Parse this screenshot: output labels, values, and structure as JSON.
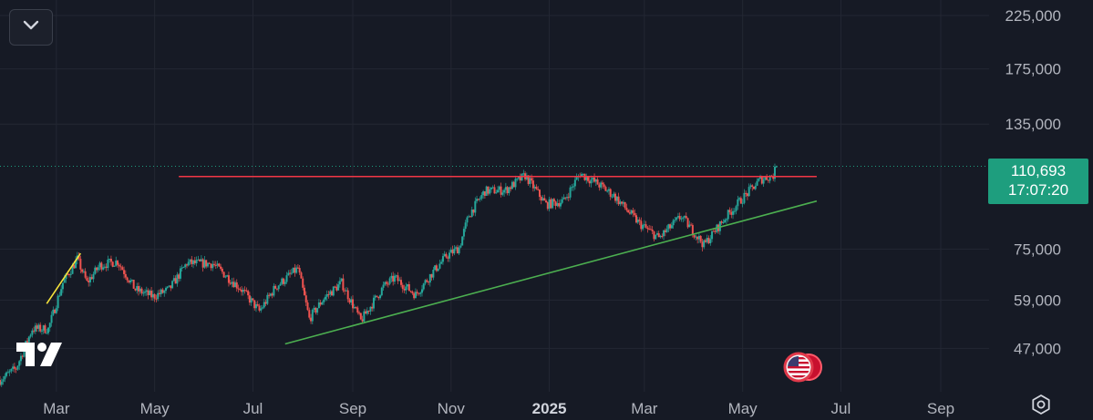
{
  "chart_data": {
    "type": "candlestick",
    "y_scale": "log",
    "ylim": [
      40000,
      240000
    ],
    "x_range": [
      "2024-01-26",
      "2025-10-01"
    ],
    "y_ticks": [
      225000,
      175000,
      135000,
      75000,
      59000,
      47000
    ],
    "y_tick_labels": [
      "225,000",
      "175,000",
      "135,000",
      "75,000",
      "59,000",
      "47,000"
    ],
    "x_ticks": [
      {
        "date": "2024-03-01",
        "label": "Mar",
        "bold": false
      },
      {
        "date": "2024-05-01",
        "label": "May",
        "bold": false
      },
      {
        "date": "2024-07-01",
        "label": "Jul",
        "bold": false
      },
      {
        "date": "2024-09-01",
        "label": "Sep",
        "bold": false
      },
      {
        "date": "2024-11-01",
        "label": "Nov",
        "bold": false
      },
      {
        "date": "2025-01-01",
        "label": "2025",
        "bold": true
      },
      {
        "date": "2025-03-01",
        "label": "Mar",
        "bold": false
      },
      {
        "date": "2025-05-01",
        "label": "May",
        "bold": false
      },
      {
        "date": "2025-07-01",
        "label": "Jul",
        "bold": false
      },
      {
        "date": "2025-09-01",
        "label": "Sep",
        "bold": false
      }
    ],
    "price_path": [
      [
        "2024-01-26",
        40500
      ],
      [
        "2024-02-05",
        42800
      ],
      [
        "2024-02-15",
        51500
      ],
      [
        "2024-02-25",
        51500
      ],
      [
        "2024-03-05",
        64000
      ],
      [
        "2024-03-14",
        71500
      ],
      [
        "2024-03-20",
        64000
      ],
      [
        "2024-03-28",
        69500
      ],
      [
        "2024-04-08",
        70800
      ],
      [
        "2024-04-19",
        62000
      ],
      [
        "2024-04-30",
        60000
      ],
      [
        "2024-05-10",
        62000
      ],
      [
        "2024-05-21",
        70200
      ],
      [
        "2024-06-06",
        70000
      ],
      [
        "2024-06-24",
        62000
      ],
      [
        "2024-07-05",
        56000
      ],
      [
        "2024-07-15",
        62700
      ],
      [
        "2024-07-29",
        68500
      ],
      [
        "2024-08-05",
        54000
      ],
      [
        "2024-08-14",
        59500
      ],
      [
        "2024-08-25",
        64000
      ],
      [
        "2024-09-06",
        53500
      ],
      [
        "2024-09-20",
        62800
      ],
      [
        "2024-09-27",
        65500
      ],
      [
        "2024-10-10",
        60500
      ],
      [
        "2024-10-21",
        67500
      ],
      [
        "2024-10-29",
        72500
      ],
      [
        "2024-11-06",
        75500
      ],
      [
        "2024-11-12",
        88000
      ],
      [
        "2024-11-22",
        98500
      ],
      [
        "2024-12-05",
        99000
      ],
      [
        "2024-12-17",
        106000
      ],
      [
        "2024-12-30",
        92500
      ],
      [
        "2025-01-10",
        94000
      ],
      [
        "2025-01-20",
        107000
      ],
      [
        "2025-01-31",
        102000
      ],
      [
        "2025-02-10",
        96500
      ],
      [
        "2025-02-26",
        84500
      ],
      [
        "2025-03-10",
        79000
      ],
      [
        "2025-03-24",
        87500
      ],
      [
        "2025-04-07",
        76500
      ],
      [
        "2025-04-21",
        87500
      ],
      [
        "2025-04-30",
        94500
      ],
      [
        "2025-05-12",
        104000
      ],
      [
        "2025-05-20",
        106000
      ],
      [
        "2025-05-22",
        110693
      ]
    ],
    "last_price": 110693,
    "last_price_label": "110,693",
    "countdown_label": "17:07:20",
    "drawings": [
      {
        "kind": "horizontal",
        "color": "#f23645",
        "price": 105500,
        "from": "2024-05-16",
        "to": "2025-06-16"
      },
      {
        "kind": "trendline",
        "color": "#4caf50",
        "from": [
          "2024-07-21",
          48000
        ],
        "to": [
          "2025-06-16",
          94000
        ]
      },
      {
        "kind": "trendline",
        "color": "#f5e33b",
        "from": [
          "2024-02-24",
          58000
        ],
        "to": [
          "2024-03-16",
          73500
        ]
      }
    ],
    "colors": {
      "background": "#161a25",
      "grid": "#232733",
      "up": "#26a69a",
      "down": "#ef5350",
      "axis_text": "#b2b5be",
      "price_line": "#1e9e7e"
    }
  },
  "icons": {
    "collapse": "chevron-down-icon",
    "logo": "tradingview-logo-icon",
    "settings": "settings-icon",
    "event": "us-flag-icon"
  }
}
